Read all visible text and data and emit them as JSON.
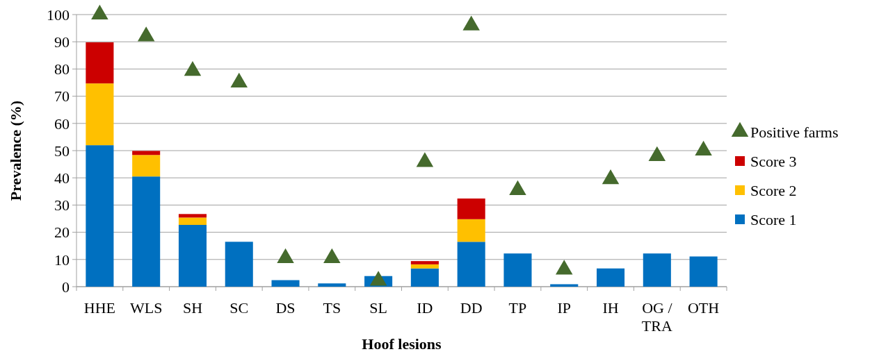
{
  "chart_data": {
    "type": "bar",
    "stacked": true,
    "xlabel": "Hoof lesions",
    "ylabel": "Prevalence (%)",
    "categories": [
      "HHE",
      "WLS",
      "SH",
      "SC",
      "DS",
      "TS",
      "SL",
      "ID",
      "DD",
      "TP",
      "IP",
      "IH",
      "OG / TRA",
      "OTH"
    ],
    "series": [
      {
        "name": "Score 1",
        "color": "#0070c0",
        "values": [
          52,
          40.5,
          22.7,
          16.5,
          2.4,
          1.2,
          3.9,
          6.7,
          16.5,
          12.2,
          0.9,
          6.7,
          12.2,
          11.1
        ]
      },
      {
        "name": "Score 2",
        "color": "#ffc000",
        "values": [
          22.7,
          7.9,
          2.7,
          null,
          null,
          null,
          null,
          1.5,
          8.3,
          null,
          null,
          null,
          null,
          null
        ]
      },
      {
        "name": "Score 3",
        "color": "#cc0000",
        "values": [
          15.1,
          1.5,
          1.3,
          null,
          null,
          null,
          null,
          1.2,
          7.6,
          null,
          null,
          null,
          null,
          null
        ]
      },
      {
        "name": "Positive farms",
        "type": "scatter",
        "marker": "triangle",
        "color": "#456a2d",
        "values": [
          100,
          92,
          79.3,
          75,
          10.5,
          10.5,
          2.2,
          45.8,
          96,
          35.5,
          6.3,
          39.5,
          48,
          50
        ]
      }
    ],
    "ylim": [
      0,
      100
    ],
    "yticks": [
      0,
      10,
      20,
      30,
      40,
      50,
      60,
      70,
      80,
      90,
      100
    ],
    "grid": "y",
    "legend": "right"
  }
}
